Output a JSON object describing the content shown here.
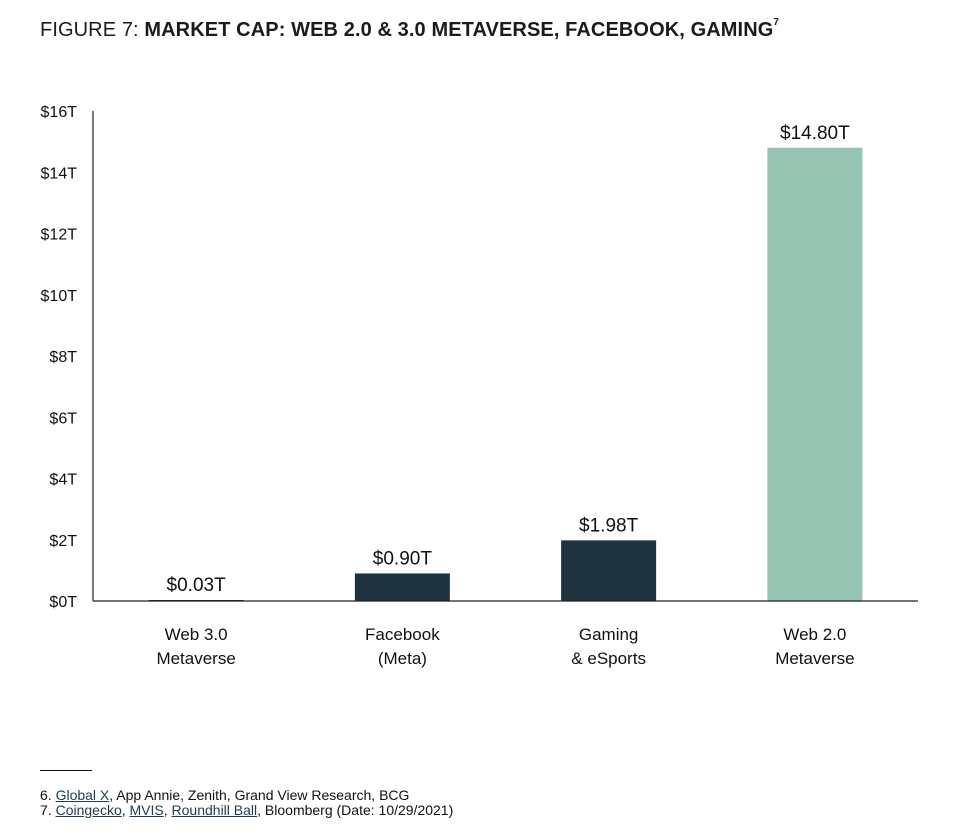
{
  "header": {
    "prefix": "FIGURE 7: ",
    "title": "MARKET CAP: WEB 2.0 & 3.0 METAVERSE, FACEBOOK, GAMING",
    "superscript": "7"
  },
  "chart_data": {
    "type": "bar",
    "title": "MARKET CAP: WEB 2.0 & 3.0 METAVERSE, FACEBOOK, GAMING",
    "xlabel": "",
    "ylabel": "",
    "ylim": [
      0,
      16
    ],
    "yticks": [
      0,
      2,
      4,
      6,
      8,
      10,
      12,
      14,
      16
    ],
    "ytick_labels": [
      "$0T",
      "$2T",
      "$4T",
      "$6T",
      "$8T",
      "$10T",
      "$12T",
      "$14T",
      "$16T"
    ],
    "categories": [
      [
        "Web 3.0",
        "Metaverse"
      ],
      [
        "Facebook",
        "(Meta)"
      ],
      [
        "Gaming",
        "& eSports"
      ],
      [
        "Web 2.0",
        "Metaverse"
      ]
    ],
    "values": [
      0.03,
      0.9,
      1.98,
      14.8
    ],
    "value_labels": [
      "$0.03T",
      "$0.90T",
      "$1.98T",
      "$14.80T"
    ],
    "colors": [
      "#1f3240",
      "#1f3240",
      "#1f3240",
      "#95c4b3"
    ],
    "grid": false,
    "legend": "none"
  },
  "footnotes": {
    "note6": {
      "number": "6.",
      "link1": "Global X",
      "rest": ", App Annie, Zenith, Grand View Research, BCG"
    },
    "note7": {
      "number": "7.",
      "link1": "Coingecko",
      "sep1": ", ",
      "link2": "MVIS",
      "sep2": ", ",
      "link3": "Roundhill Ball",
      "rest": ", Bloomberg (Date: 10/29/2021)"
    }
  }
}
